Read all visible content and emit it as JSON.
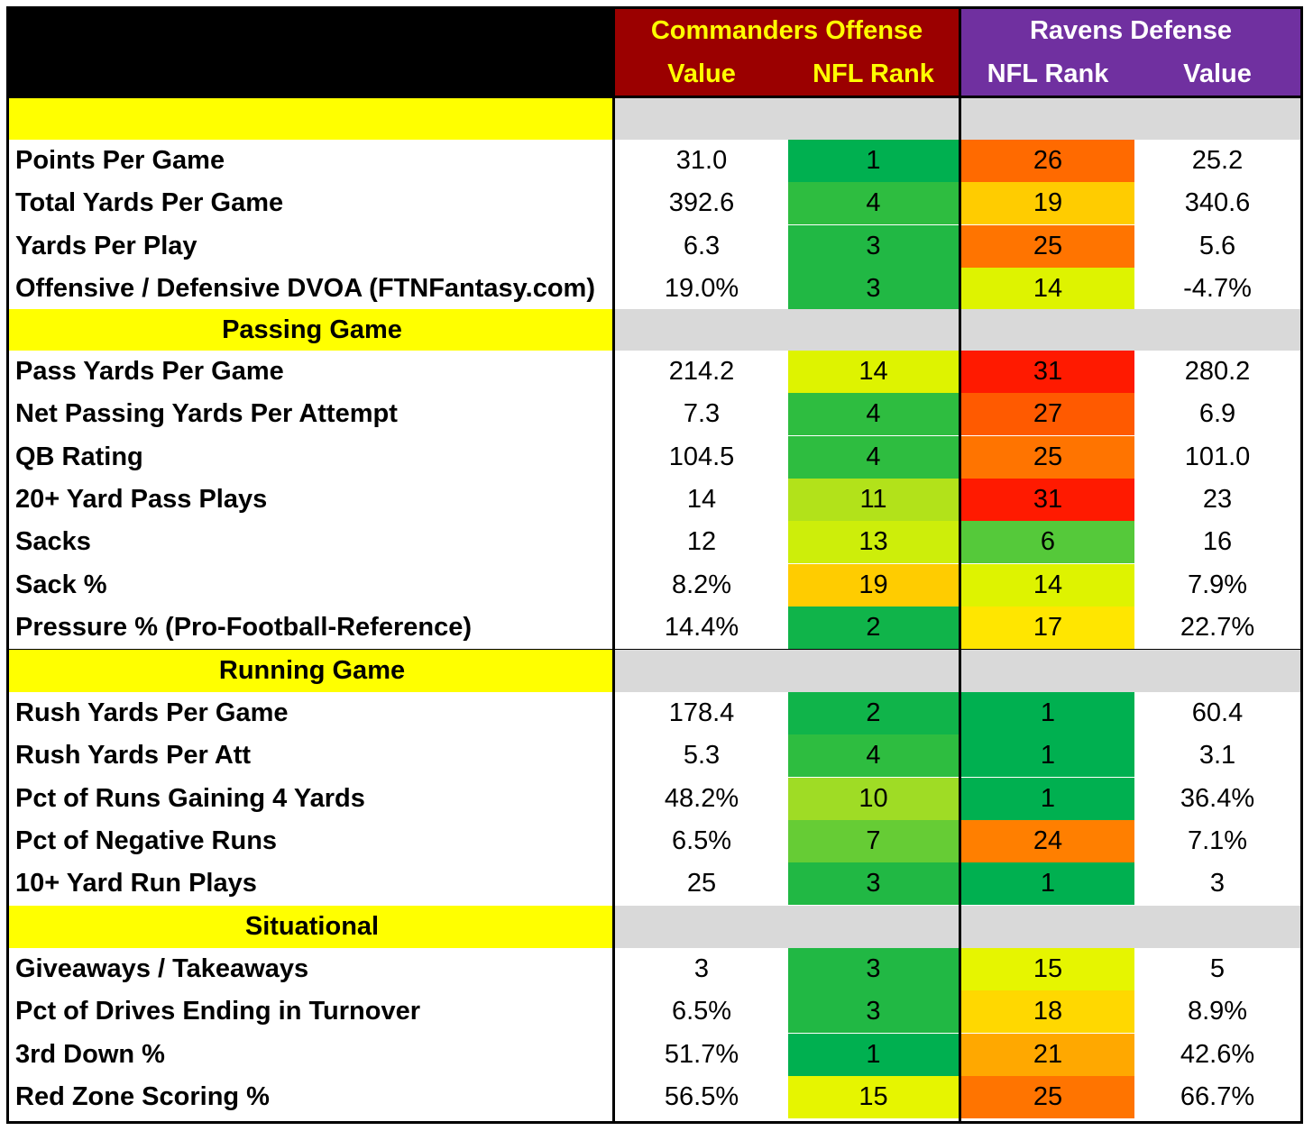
{
  "header": {
    "offense_title": "Commanders Offense",
    "defense_title": "Ravens Defense",
    "offense_col1": "Value",
    "offense_col2": "NFL Rank",
    "defense_col1": "NFL Rank",
    "defense_col2": "Value"
  },
  "colors": {
    "header_offense_bg": "#9b0000",
    "header_defense_bg": "#7030a0",
    "section_label_bg": "#ffff00",
    "section_fill_bg": "#d9d9d9"
  },
  "sections": [
    {
      "title": "",
      "rows": [
        {
          "label": "Points Per Game",
          "off_value": "31.0",
          "off_rank": "1",
          "off_color": "#00b050",
          "def_rank": "26",
          "def_color": "#ff6a00",
          "def_value": "25.2"
        },
        {
          "label": "Total Yards Per Game",
          "off_value": "392.6",
          "off_rank": "4",
          "off_color": "#2ebd40",
          "def_rank": "19",
          "def_color": "#ffcc00",
          "def_value": "340.6"
        },
        {
          "label": "Yards Per Play",
          "off_value": "6.3",
          "off_rank": "3",
          "off_color": "#21b844",
          "def_rank": "25",
          "def_color": "#ff7400",
          "def_value": "5.6"
        },
        {
          "label": "Offensive / Defensive DVOA (FTNFantasy.com)",
          "off_value": "19.0%",
          "off_rank": "3",
          "off_color": "#21b844",
          "def_rank": "14",
          "def_color": "#def300",
          "def_value": "-4.7%"
        }
      ]
    },
    {
      "title": "Passing Game",
      "rows": [
        {
          "label": "Pass Yards Per Game",
          "off_value": "214.2",
          "off_rank": "14",
          "off_color": "#def300",
          "def_rank": "31",
          "def_color": "#ff1a00",
          "def_value": "280.2"
        },
        {
          "label": "Net Passing Yards Per Attempt",
          "off_value": "7.3",
          "off_rank": "4",
          "off_color": "#2ebd40",
          "def_rank": "27",
          "def_color": "#ff5a00",
          "def_value": "6.9"
        },
        {
          "label": "QB Rating",
          "off_value": "104.5",
          "off_rank": "4",
          "off_color": "#2ebd40",
          "def_rank": "25",
          "def_color": "#ff7400",
          "def_value": "101.0"
        },
        {
          "label": "20+ Yard Pass Plays",
          "off_value": "14",
          "off_rank": "11",
          "off_color": "#b2e21a",
          "def_rank": "31",
          "def_color": "#ff1a00",
          "def_value": "23"
        },
        {
          "label": "Sacks",
          "off_value": "12",
          "off_rank": "13",
          "off_color": "#cdee0a",
          "def_rank": "6",
          "def_color": "#55c93a",
          "def_value": "16"
        },
        {
          "label": "Sack %",
          "off_value": "8.2%",
          "off_rank": "19",
          "off_color": "#ffcc00",
          "def_rank": "14",
          "def_color": "#def300",
          "def_value": "7.9%"
        },
        {
          "label": "Pressure % (Pro-Football-Reference)",
          "off_value": "14.4%",
          "off_rank": "2",
          "off_color": "#10b44a",
          "def_rank": "17",
          "def_color": "#ffe600",
          "def_value": "22.7%"
        }
      ]
    },
    {
      "title": "Running Game",
      "rows": [
        {
          "label": "Rush Yards Per Game",
          "off_value": "178.4",
          "off_rank": "2",
          "off_color": "#10b44a",
          "def_rank": "1",
          "def_color": "#00b050",
          "def_value": "60.4"
        },
        {
          "label": "Rush Yards Per Att",
          "off_value": "5.3",
          "off_rank": "4",
          "off_color": "#2ebd40",
          "def_rank": "1",
          "def_color": "#00b050",
          "def_value": "3.1"
        },
        {
          "label": "Pct of Runs Gaining 4 Yards",
          "off_value": "48.2%",
          "off_rank": "10",
          "off_color": "#9fdc25",
          "def_rank": "1",
          "def_color": "#00b050",
          "def_value": "36.4%"
        },
        {
          "label": "Pct of Negative Runs",
          "off_value": "6.5%",
          "off_rank": "7",
          "off_color": "#66cc35",
          "def_rank": "24",
          "def_color": "#ff7f00",
          "def_value": "7.1%"
        },
        {
          "label": "10+ Yard Run Plays",
          "off_value": "25",
          "off_rank": "3",
          "off_color": "#21b844",
          "def_rank": "1",
          "def_color": "#00b050",
          "def_value": "3"
        }
      ]
    },
    {
      "title": "Situational",
      "rows": [
        {
          "label": "Giveaways / Takeaways",
          "off_value": "3",
          "off_rank": "3",
          "off_color": "#21b844",
          "def_rank": "15",
          "def_color": "#e6f500",
          "def_value": "5"
        },
        {
          "label": "Pct of Drives Ending in Turnover",
          "off_value": "6.5%",
          "off_rank": "3",
          "off_color": "#21b844",
          "def_rank": "18",
          "def_color": "#ffd800",
          "def_value": "8.9%"
        },
        {
          "label": "3rd Down %",
          "off_value": "51.7%",
          "off_rank": "1",
          "off_color": "#00b050",
          "def_rank": "21",
          "def_color": "#ffa800",
          "def_value": "42.6%"
        },
        {
          "label": "Red Zone Scoring %",
          "off_value": "56.5%",
          "off_rank": "15",
          "off_color": "#e6f500",
          "def_rank": "25",
          "def_color": "#ff7400",
          "def_value": "66.7%"
        }
      ]
    }
  ]
}
